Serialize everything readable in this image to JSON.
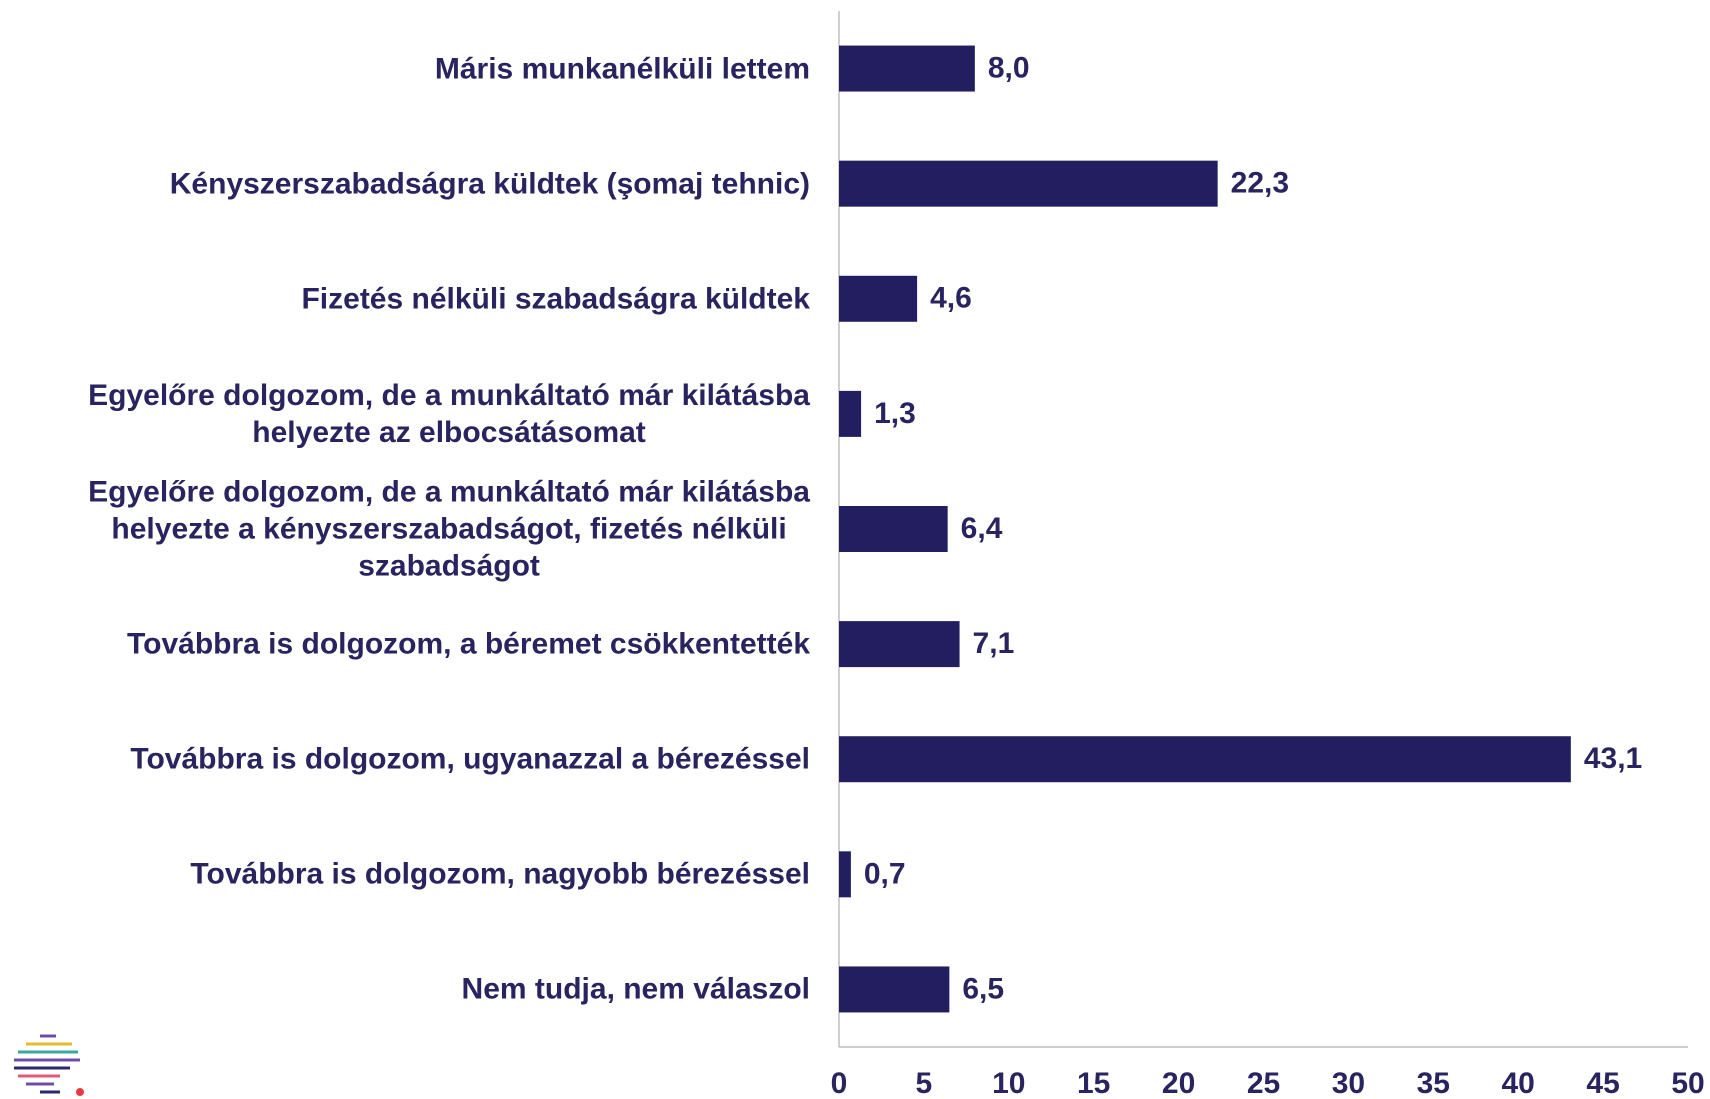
{
  "chart_data": {
    "type": "bar",
    "orientation": "horizontal",
    "categories": [
      "Máris munkanélküli lettem",
      "Kényszerszabadságra küldtek (şomaj tehnic)",
      "Fizetés nélküli szabadságra küldtek",
      "Egyelőre dolgozom, de a munkáltató már kilátásba\nhelyezte az elbocsátásomat",
      "Egyelőre dolgozom, de a munkáltató már kilátásba\nhelyezte a kényszerszabadságot, fizetés nélküli\nszabadságot",
      "Továbbra is dolgozom, a béremet csökkentették",
      "Továbbra is dolgozom, ugyanazzal a bérezéssel",
      "Továbbra is dolgozom, nagyobb bérezéssel",
      "Nem tudja, nem válaszol"
    ],
    "values": [
      8.0,
      22.3,
      4.6,
      1.3,
      6.4,
      7.1,
      43.1,
      0.7,
      6.5
    ],
    "value_labels": [
      "8,0",
      "22,3",
      "4,6",
      "1,3",
      "6,4",
      "7,1",
      "43,1",
      "0,7",
      "6,5"
    ],
    "color": "#221e5f",
    "xlim": [
      0,
      50
    ],
    "xticks": [
      0,
      5,
      10,
      15,
      20,
      25,
      30,
      35,
      40,
      45,
      50
    ],
    "grid": false
  }
}
